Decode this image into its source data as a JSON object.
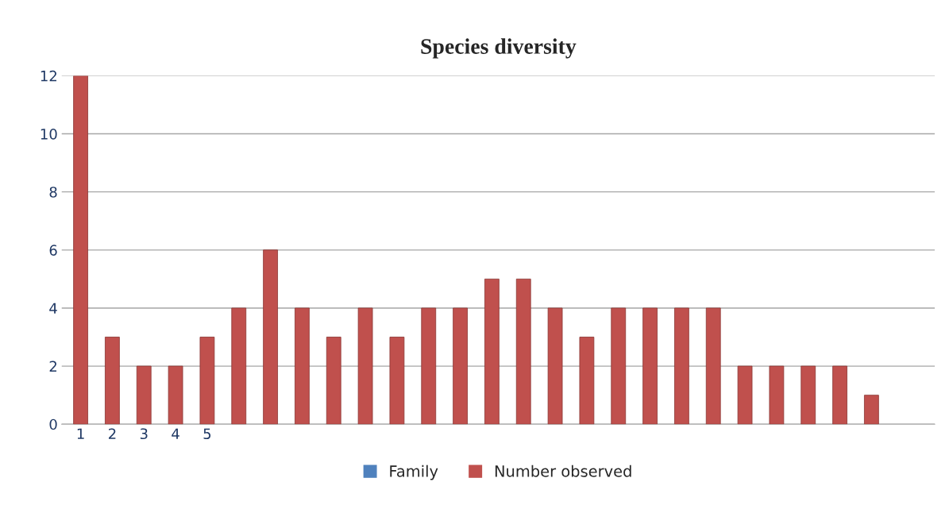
{
  "chart_data": {
    "type": "bar",
    "title": "Species diversity",
    "categories": [
      "1",
      "2",
      "3",
      "4",
      "5",
      null,
      null,
      null,
      null,
      null,
      null,
      null,
      null,
      null,
      null,
      null,
      null,
      null,
      null,
      null,
      null,
      null,
      null,
      null,
      null,
      null
    ],
    "series": [
      {
        "name": "Family",
        "color": "#4f81bd",
        "values": [
          null,
          null,
          null,
          null,
          null,
          null,
          null,
          null,
          null,
          null,
          null,
          null,
          null,
          null,
          null,
          null,
          null,
          null,
          null,
          null,
          null,
          null,
          null,
          null,
          null,
          null
        ]
      },
      {
        "name": "Number observed",
        "color": "#c0504d",
        "values": [
          12,
          3,
          2,
          2,
          3,
          4,
          6,
          4,
          3,
          4,
          3,
          4,
          4,
          5,
          5,
          4,
          3,
          4,
          4,
          4,
          4,
          2,
          2,
          2,
          2,
          1
        ]
      }
    ],
    "ylim": [
      0,
      12
    ],
    "yticks": [
      0,
      2,
      4,
      6,
      8,
      10,
      12
    ],
    "grid": "y",
    "legend": "bottom"
  }
}
